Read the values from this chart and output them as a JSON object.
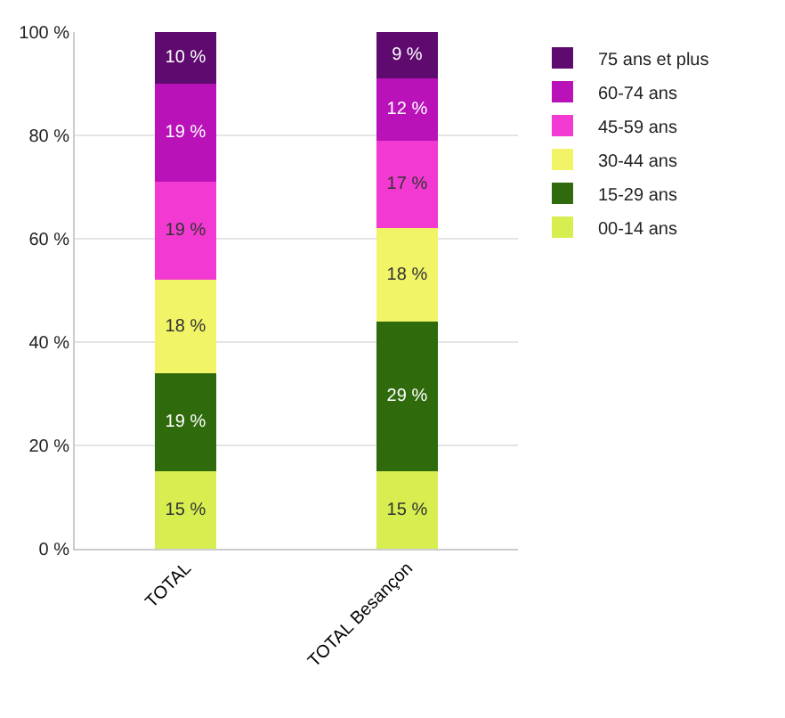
{
  "chart_data": {
    "type": "bar",
    "stacked": true,
    "categories": [
      "TOTAL",
      "TOTAL Besançon"
    ],
    "series": [
      {
        "name": "00-14 ans",
        "color": "#d8ee50",
        "values": [
          15,
          15
        ],
        "value_labels": [
          "15 %",
          "15 %"
        ]
      },
      {
        "name": "15-29 ans",
        "color": "#2f6a0c",
        "values": [
          19,
          29
        ],
        "value_labels": [
          "19 %",
          "29 %"
        ]
      },
      {
        "name": "30-44 ans",
        "color": "#f2f468",
        "values": [
          18,
          18
        ],
        "value_labels": [
          "18 %",
          "18 %"
        ]
      },
      {
        "name": "45-59 ans",
        "color": "#f23ad2",
        "values": [
          19,
          17
        ],
        "value_labels": [
          "19 %",
          "17 %"
        ]
      },
      {
        "name": "60-74 ans",
        "color": "#b812b8",
        "values": [
          19,
          12
        ],
        "value_labels": [
          "19 %",
          "12 %"
        ]
      },
      {
        "name": "75 ans et plus",
        "color": "#5e0a6e",
        "values": [
          10,
          9
        ],
        "value_labels": [
          "10 %",
          "9 %"
        ]
      }
    ],
    "ylim": [
      0,
      100
    ],
    "yticks": [
      {
        "value": 0,
        "label": "0 %"
      },
      {
        "value": 20,
        "label": "20 %"
      },
      {
        "value": 40,
        "label": "40 %"
      },
      {
        "value": 60,
        "label": "60 %"
      },
      {
        "value": 80,
        "label": "80 %"
      },
      {
        "value": 100,
        "label": "100 %"
      }
    ],
    "grid": "y",
    "legend": "right"
  }
}
